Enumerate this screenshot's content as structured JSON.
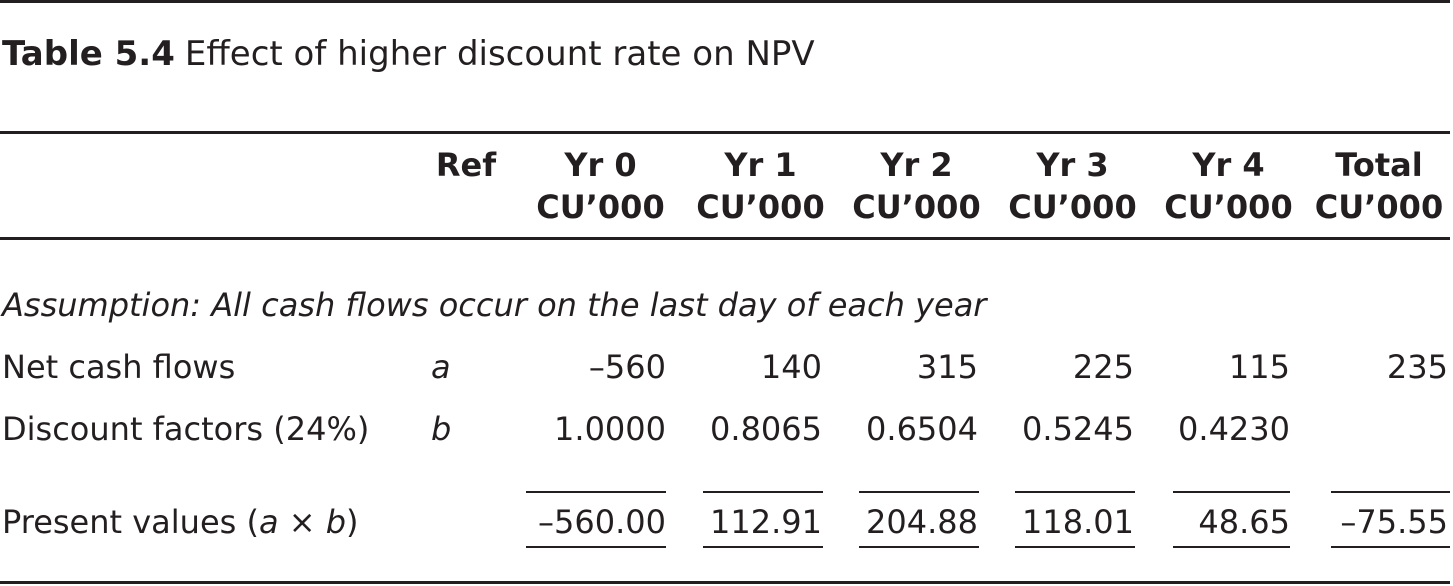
{
  "caption": {
    "label": "Table 5.4",
    "title": "Effect of higher discount rate on NPV"
  },
  "header": {
    "ref": "Ref",
    "columns": [
      {
        "line1": "Yr 0",
        "line2": "CU’000"
      },
      {
        "line1": "Yr 1",
        "line2": "CU’000"
      },
      {
        "line1": "Yr 2",
        "line2": "CU’000"
      },
      {
        "line1": "Yr 3",
        "line2": "CU’000"
      },
      {
        "line1": "Yr 4",
        "line2": "CU’000"
      },
      {
        "line1": "Total",
        "line2": "CU’000"
      }
    ]
  },
  "assumption": "Assumption: All cash flows occur on the last day of each year",
  "rows": {
    "net_cash_flows": {
      "label": "Net cash flows",
      "ref": "a",
      "values": [
        "–560",
        "140",
        "315",
        "225",
        "115",
        "235"
      ]
    },
    "discount_factors": {
      "label": "Discount factors (24%)",
      "ref": "b",
      "values": [
        "1.0000",
        "0.8065",
        "0.6504",
        "0.5245",
        "0.4230"
      ]
    },
    "present_values": {
      "label_prefix": "Present values (",
      "label_a": "a",
      "label_times": " × ",
      "label_b": "b",
      "label_suffix": ")",
      "values": [
        "–560.00",
        "112.91",
        "204.88",
        "118.01",
        "48.65",
        "–75.55"
      ]
    }
  }
}
